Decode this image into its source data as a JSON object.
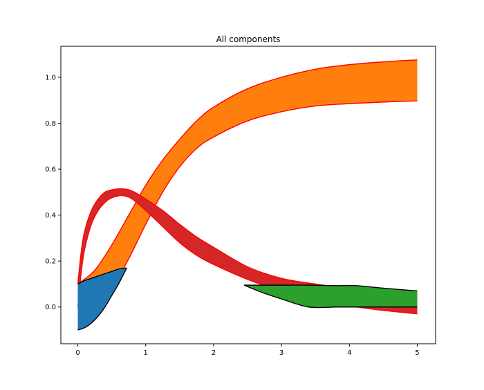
{
  "chart_data": {
    "type": "area",
    "title": "All components",
    "xlabel": "",
    "ylabel": "",
    "xlim": [
      -0.25,
      5.27
    ],
    "ylim": [
      -0.16,
      1.135
    ],
    "grid": false,
    "legend": "none",
    "x_ticks": [
      0,
      1,
      2,
      3,
      4,
      5
    ],
    "y_ticks": [
      0.0,
      0.2,
      0.4,
      0.6,
      0.8,
      1.0
    ],
    "x_tick_labels": [
      "0",
      "1",
      "2",
      "3",
      "4",
      "5"
    ],
    "y_tick_labels": [
      "0.0",
      "0.2",
      "0.4",
      "0.6",
      "0.8",
      "1.0"
    ],
    "series": [
      {
        "color": "#ff7f0e",
        "edge_color": "#ff0000",
        "x": [
          0,
          0.25,
          0.5,
          0.75,
          1.0,
          1.25,
          1.5,
          1.75,
          2.0,
          2.5,
          3.0,
          3.5,
          4.0,
          4.5,
          5.0
        ],
        "lower": [
          -0.1,
          -0.03,
          0.08,
          0.21,
          0.36,
          0.5,
          0.61,
          0.69,
          0.74,
          0.81,
          0.85,
          0.875,
          0.885,
          0.892,
          0.897
        ],
        "upper": [
          0.1,
          0.16,
          0.27,
          0.4,
          0.53,
          0.64,
          0.73,
          0.81,
          0.87,
          0.95,
          1.0,
          1.035,
          1.055,
          1.067,
          1.076
        ]
      },
      {
        "color": "#d62728",
        "edge_color": "#ff0000",
        "x": [
          0,
          0.05,
          0.1,
          0.2,
          0.3,
          0.4,
          0.5,
          0.65,
          0.8,
          1.0,
          1.25,
          1.5,
          1.75,
          2.0,
          2.5,
          3.0,
          3.5,
          4.0,
          4.5,
          5.0
        ],
        "lower": [
          0.0,
          0.15,
          0.25,
          0.36,
          0.42,
          0.455,
          0.475,
          0.485,
          0.47,
          0.42,
          0.35,
          0.28,
          0.225,
          0.185,
          0.12,
          0.07,
          0.035,
          0.005,
          -0.015,
          -0.03
        ],
        "upper": [
          0.1,
          0.24,
          0.33,
          0.42,
          0.47,
          0.5,
          0.51,
          0.515,
          0.505,
          0.47,
          0.42,
          0.36,
          0.305,
          0.26,
          0.175,
          0.125,
          0.1,
          0.08,
          0.065,
          0.055
        ]
      },
      {
        "color": "#1f77b4",
        "edge_color": "#000000",
        "x": [
          0,
          0.1,
          0.2,
          0.3,
          0.4,
          0.5,
          0.6,
          0.72
        ],
        "lower": [
          -0.1,
          -0.09,
          -0.07,
          -0.04,
          0.0,
          0.05,
          0.1,
          0.17
        ],
        "upper": [
          0.1,
          0.115,
          0.125,
          0.135,
          0.145,
          0.155,
          0.165,
          0.17
        ]
      },
      {
        "color": "#2ca02c",
        "edge_color": "#000000",
        "x": [
          2.45,
          2.7,
          3.0,
          3.4,
          3.8,
          4.1,
          4.5,
          5.0
        ],
        "lower": [
          0.095,
          0.065,
          0.035,
          0.0,
          0.0,
          0.0,
          0.0,
          0.0
        ],
        "upper": [
          0.095,
          0.095,
          0.095,
          0.095,
          0.093,
          0.093,
          0.082,
          0.07
        ]
      }
    ]
  }
}
